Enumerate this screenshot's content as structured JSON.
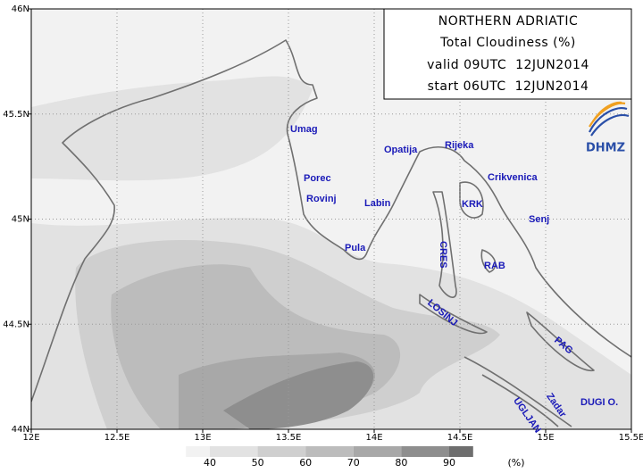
{
  "header": {
    "lines": [
      "NORTHERN ADRIATIC",
      "Total Cloudiness (%)",
      "valid 09UTC  12JUN2014",
      "start 06UTC  12JUN2014"
    ]
  },
  "logo": "DHMZ",
  "map": {
    "xlim": [
      12,
      15.5
    ],
    "ylim": [
      44,
      46
    ],
    "xticks": [
      {
        "value": 12,
        "label": "12E"
      },
      {
        "value": 12.5,
        "label": "12.5E"
      },
      {
        "value": 13,
        "label": "13E"
      },
      {
        "value": 13.5,
        "label": "13.5E"
      },
      {
        "value": 14,
        "label": "14E"
      },
      {
        "value": 14.5,
        "label": "14.5E"
      },
      {
        "value": 15,
        "label": "15E"
      },
      {
        "value": 15.5,
        "label": "15.5E"
      }
    ],
    "yticks": [
      {
        "value": 44,
        "label": "44N"
      },
      {
        "value": 44.5,
        "label": "44.5N"
      },
      {
        "value": 45,
        "label": "45N"
      },
      {
        "value": 45.5,
        "label": "45.5N"
      },
      {
        "value": 46,
        "label": "46N"
      }
    ],
    "grid": true,
    "places": [
      "Umag",
      "Porec",
      "Rovinj",
      "Pula",
      "Labin",
      "Opatija",
      "Rijeka",
      "Crikvenica",
      "KRK",
      "Senj",
      "CRES",
      "RAB",
      "LOSINJ",
      "PAG",
      "Zadar",
      "UGLJAN",
      "DUGI O."
    ]
  },
  "legend": {
    "levels": [
      40,
      50,
      60,
      70,
      80,
      90
    ],
    "unit": "(%)",
    "colors": [
      "#f2f2f2",
      "#e2e2e2",
      "#cfcfcf",
      "#bcbcbc",
      "#a8a8a8",
      "#8e8e8e",
      "#6e6e6e"
    ]
  }
}
